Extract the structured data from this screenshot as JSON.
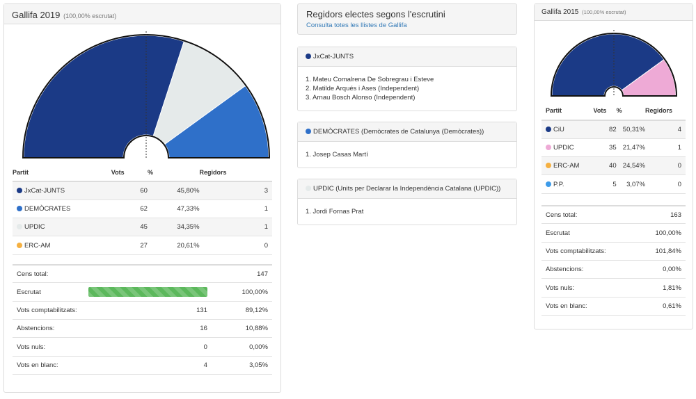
{
  "left": {
    "title": "Gallifa 2019",
    "subtitle": "(100,00% escrutat)",
    "headers": {
      "party": "Partit",
      "votes": "Vots",
      "pct": "%",
      "seats": "Regidors"
    },
    "parties": [
      {
        "name": "JxCat-JUNTS",
        "votes": "60",
        "pct": "45,80%",
        "seats": "3",
        "color": "#1b3a86"
      },
      {
        "name": "DEMÒCRATES",
        "votes": "62",
        "pct": "47,33%",
        "seats": "1",
        "color": "#2f70c9"
      },
      {
        "name": "UPDIC",
        "votes": "45",
        "pct": "34,35%",
        "seats": "1",
        "color": "#e5eaea"
      },
      {
        "name": "ERC-AM",
        "votes": "27",
        "pct": "20,61%",
        "seats": "0",
        "color": "#f5b041"
      }
    ],
    "census": [
      {
        "label": "Cens total:",
        "value1": "",
        "value2": "147"
      },
      {
        "label": "Escrutat",
        "value1": "",
        "value2": "100,00%",
        "progress": 1.0
      },
      {
        "label": "Vots comptabilitzats:",
        "value1": "131",
        "value2": "89,12%"
      },
      {
        "label": "Abstencions:",
        "value1": "16",
        "value2": "10,88%"
      },
      {
        "label": "Vots nuls:",
        "value1": "0",
        "value2": "0,00%"
      },
      {
        "label": "Vots en blanc:",
        "value1": "4",
        "value2": "3,05%"
      }
    ],
    "seat_chart": {
      "total_seats": 5,
      "segments": [
        {
          "party": "JxCat-JUNTS",
          "seats": 3,
          "color": "#1b3a86"
        },
        {
          "party": "UPDIC",
          "seats": 1,
          "color": "#e5eaea"
        },
        {
          "party": "DEMÒCRATES",
          "seats": 1,
          "color": "#2f70c9"
        }
      ]
    }
  },
  "middle": {
    "title": "Regidors electes segons l'escrutini",
    "link": "Consulta totes les llistes de Gallifa",
    "lists": [
      {
        "party": "JxCat-JUNTS",
        "color": "#1b3a86",
        "members": [
          "1. Mateu Comalrena De Sobregrau i Esteve",
          "2. Matilde Arqués i Ases (Independent)",
          "3. Arnau Bosch Alonso (Independent)"
        ]
      },
      {
        "party": "DEMÒCRATES (Demòcrates de Catalunya (Demòcrates))",
        "color": "#2f70c9",
        "members": [
          "1. Josep Casas Martí"
        ]
      },
      {
        "party": "UPDIC (Units per Declarar la Independència Catalana (UPDIC))",
        "color": "#e5eaea",
        "members": [
          "1. Jordi Fornas Prat"
        ]
      }
    ]
  },
  "right": {
    "title": "Gallifa 2015",
    "subtitle": "(100,00% escrutat)",
    "headers": {
      "party": "Partit",
      "votes": "Vots",
      "pct": "%",
      "seats": "Regidors"
    },
    "parties": [
      {
        "name": "CiU",
        "votes": "82",
        "pct": "50,31%",
        "seats": "4",
        "color": "#1b3a86"
      },
      {
        "name": "UPDIC",
        "votes": "35",
        "pct": "21,47%",
        "seats": "1",
        "color": "#eeaad6"
      },
      {
        "name": "ERC-AM",
        "votes": "40",
        "pct": "24,54%",
        "seats": "0",
        "color": "#f5b041"
      },
      {
        "name": "P.P.",
        "votes": "5",
        "pct": "3,07%",
        "seats": "0",
        "color": "#3d9be9"
      }
    ],
    "census": [
      {
        "label": "Cens total:",
        "value": "163"
      },
      {
        "label": "Escrutat",
        "value": "100,00%"
      },
      {
        "label": "Vots comptabilitzats:",
        "value": "101,84%"
      },
      {
        "label": "Abstencions:",
        "value": "0,00%"
      },
      {
        "label": "Vots nuls:",
        "value": "1,81%"
      },
      {
        "label": "Vots en blanc:",
        "value": "0,61%"
      }
    ],
    "seat_chart": {
      "total_seats": 5,
      "segments": [
        {
          "party": "CiU",
          "seats": 4,
          "color": "#1b3a86"
        },
        {
          "party": "UPDIC",
          "seats": 1,
          "color": "#eeaad6"
        }
      ]
    }
  }
}
